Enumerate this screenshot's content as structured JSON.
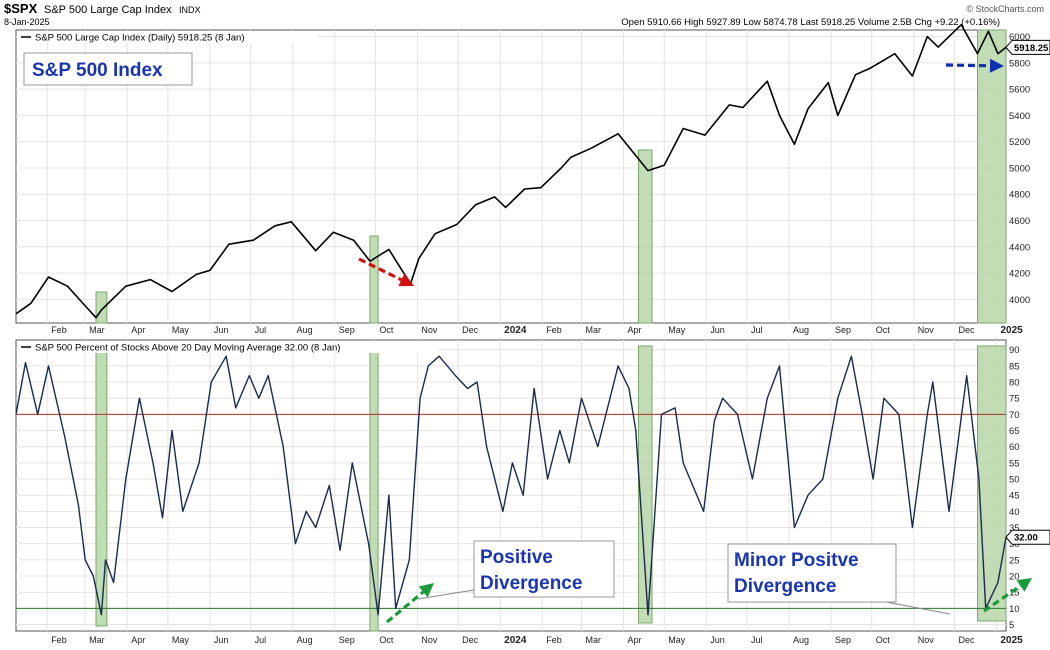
{
  "header": {
    "symbol": "$SPX",
    "name": "S&P 500 Large Cap Index",
    "exchange": "INDX",
    "date": "8-Jan-2025",
    "copyright": "© StockCharts.com",
    "quote": "Open 5910.66  High 5927.89  Low 5874.78  Last 5918.25  Volume 2.5B  Chg +9.22 (+0.16%)"
  },
  "colors": {
    "price_line": "#000000",
    "breadth_line": "#1a2a50",
    "highlight_fill": "#b7d6a8",
    "highlight_stroke": "#7aa86a",
    "upper_line": "#b03030",
    "lower_line": "#2a7a2a",
    "red_arrow": "#d01010",
    "green_arrow": "#1a9a3a",
    "blue_arrow": "#1030b0",
    "callout_text": "#1a35b0"
  },
  "chart_data": [
    {
      "type": "line",
      "title": "S&P 500 Large Cap Index (Daily) 5918.25 (8 Jan)",
      "annotation": "S&P 500 Index",
      "last_value_label": "5918.25",
      "x_tick_labels": [
        "Feb",
        "Mar",
        "Apr",
        "May",
        "Jun",
        "Jul",
        "Aug",
        "Sep",
        "Oct",
        "Nov",
        "Dec",
        "2024",
        "Feb",
        "Mar",
        "Apr",
        "May",
        "Jun",
        "Jul",
        "Aug",
        "Sep",
        "Oct",
        "Nov",
        "Dec",
        "2025"
      ],
      "x_range": [
        "2023-01-09",
        "2025-01-08"
      ],
      "y_ticks": [
        4000,
        4200,
        4400,
        4600,
        4800,
        5000,
        5200,
        5400,
        5600,
        5800,
        6000
      ],
      "ylim": [
        3820,
        6050
      ],
      "grid": true,
      "series": [
        {
          "x": [
            "2023-01-09",
            "2023-01-20",
            "2023-02-02",
            "2023-02-16",
            "2023-03-01",
            "2023-03-09",
            "2023-03-13",
            "2023-03-21",
            "2023-03-31",
            "2023-04-18",
            "2023-05-04",
            "2023-05-22",
            "2023-06-01",
            "2023-06-15",
            "2023-07-03",
            "2023-07-19",
            "2023-07-31",
            "2023-08-18",
            "2023-08-31",
            "2023-09-15",
            "2023-09-27",
            "2023-10-11",
            "2023-10-20",
            "2023-10-27",
            "2023-11-02",
            "2023-11-14",
            "2023-11-30",
            "2023-12-14",
            "2023-12-28",
            "2024-01-05",
            "2024-01-19",
            "2024-01-31",
            "2024-02-15",
            "2024-02-22",
            "2024-03-08",
            "2024-03-28",
            "2024-04-19",
            "2024-05-01",
            "2024-05-15",
            "2024-05-31",
            "2024-06-18",
            "2024-06-28",
            "2024-07-16",
            "2024-07-25",
            "2024-08-05",
            "2024-08-15",
            "2024-08-30",
            "2024-09-06",
            "2024-09-19",
            "2024-09-30",
            "2024-10-18",
            "2024-10-31",
            "2024-11-11",
            "2024-11-19",
            "2024-12-06",
            "2024-12-18",
            "2024-12-26",
            "2025-01-02",
            "2025-01-08"
          ],
          "y": [
            3890,
            3970,
            4170,
            4100,
            3950,
            3860,
            3920,
            4000,
            4100,
            4150,
            4060,
            4190,
            4220,
            4420,
            4450,
            4560,
            4590,
            4370,
            4510,
            4450,
            4290,
            4380,
            4230,
            4120,
            4310,
            4500,
            4570,
            4720,
            4780,
            4700,
            4840,
            4850,
            5000,
            5080,
            5150,
            5260,
            4980,
            5020,
            5300,
            5250,
            5480,
            5460,
            5660,
            5400,
            5180,
            5450,
            5650,
            5400,
            5710,
            5760,
            5870,
            5700,
            6000,
            5920,
            6090,
            5870,
            6040,
            5870,
            5918
          ]
        }
      ]
    },
    {
      "type": "line",
      "title": "S&P 500 Percent of Stocks Above 20 Day Moving Average 32.00 (8 Jan)",
      "last_value_label": "32.00",
      "x_tick_labels": [
        "Feb",
        "Mar",
        "Apr",
        "May",
        "Jun",
        "Jul",
        "Aug",
        "Sep",
        "Oct",
        "Nov",
        "Dec",
        "2024",
        "Feb",
        "Mar",
        "Apr",
        "May",
        "Jun",
        "Jul",
        "Aug",
        "Sep",
        "Oct",
        "Nov",
        "Dec",
        "2025"
      ],
      "x_range": [
        "2023-01-09",
        "2025-01-08"
      ],
      "y_ticks": [
        5,
        10,
        15,
        20,
        25,
        30,
        35,
        40,
        45,
        50,
        55,
        60,
        65,
        70,
        75,
        80,
        85,
        90
      ],
      "ylim": [
        3,
        93
      ],
      "reference_lines": [
        70,
        10
      ],
      "grid": true,
      "series": [
        {
          "x": [
            "2023-01-09",
            "2023-01-16",
            "2023-01-25",
            "2023-02-02",
            "2023-02-14",
            "2023-02-24",
            "2023-03-01",
            "2023-03-07",
            "2023-03-13",
            "2023-03-16",
            "2023-03-22",
            "2023-03-31",
            "2023-04-10",
            "2023-04-20",
            "2023-04-27",
            "2023-05-04",
            "2023-05-12",
            "2023-05-24",
            "2023-06-02",
            "2023-06-13",
            "2023-06-20",
            "2023-06-30",
            "2023-07-07",
            "2023-07-14",
            "2023-07-25",
            "2023-08-03",
            "2023-08-11",
            "2023-08-18",
            "2023-08-28",
            "2023-09-05",
            "2023-09-14",
            "2023-09-26",
            "2023-10-03",
            "2023-10-11",
            "2023-10-16",
            "2023-10-26",
            "2023-11-03",
            "2023-11-09",
            "2023-11-17",
            "2023-11-29",
            "2023-12-08",
            "2023-12-15",
            "2023-12-22",
            "2024-01-03",
            "2024-01-10",
            "2024-01-18",
            "2024-01-26",
            "2024-02-05",
            "2024-02-14",
            "2024-02-21",
            "2024-03-01",
            "2024-03-13",
            "2024-03-28",
            "2024-04-05",
            "2024-04-10",
            "2024-04-19",
            "2024-04-29",
            "2024-05-09",
            "2024-05-15",
            "2024-05-30",
            "2024-06-07",
            "2024-06-13",
            "2024-06-24",
            "2024-07-05",
            "2024-07-16",
            "2024-07-25",
            "2024-08-05",
            "2024-08-15",
            "2024-08-26",
            "2024-09-06",
            "2024-09-16",
            "2024-09-24",
            "2024-10-02",
            "2024-10-10",
            "2024-10-21",
            "2024-10-31",
            "2024-11-11",
            "2024-11-15",
            "2024-11-27",
            "2024-12-10",
            "2024-12-19",
            "2024-12-24",
            "2025-01-02",
            "2025-01-08"
          ],
          "y": [
            70,
            86,
            70,
            85,
            63,
            42,
            25,
            20,
            8,
            25,
            18,
            50,
            75,
            55,
            38,
            65,
            40,
            55,
            80,
            88,
            72,
            82,
            75,
            82,
            60,
            30,
            40,
            35,
            48,
            28,
            55,
            30,
            8,
            45,
            10,
            25,
            75,
            85,
            88,
            82,
            78,
            80,
            60,
            40,
            55,
            45,
            78,
            50,
            65,
            55,
            75,
            60,
            85,
            78,
            65,
            8,
            70,
            72,
            55,
            40,
            68,
            75,
            70,
            50,
            75,
            85,
            35,
            45,
            50,
            75,
            88,
            70,
            50,
            75,
            70,
            35,
            70,
            80,
            40,
            82,
            50,
            10,
            18,
            32
          ]
        }
      ]
    }
  ],
  "callouts": [
    {
      "lines": [
        "Positive",
        "Divergence"
      ]
    },
    {
      "lines": [
        "Minor Positve",
        "Divergence"
      ]
    }
  ]
}
